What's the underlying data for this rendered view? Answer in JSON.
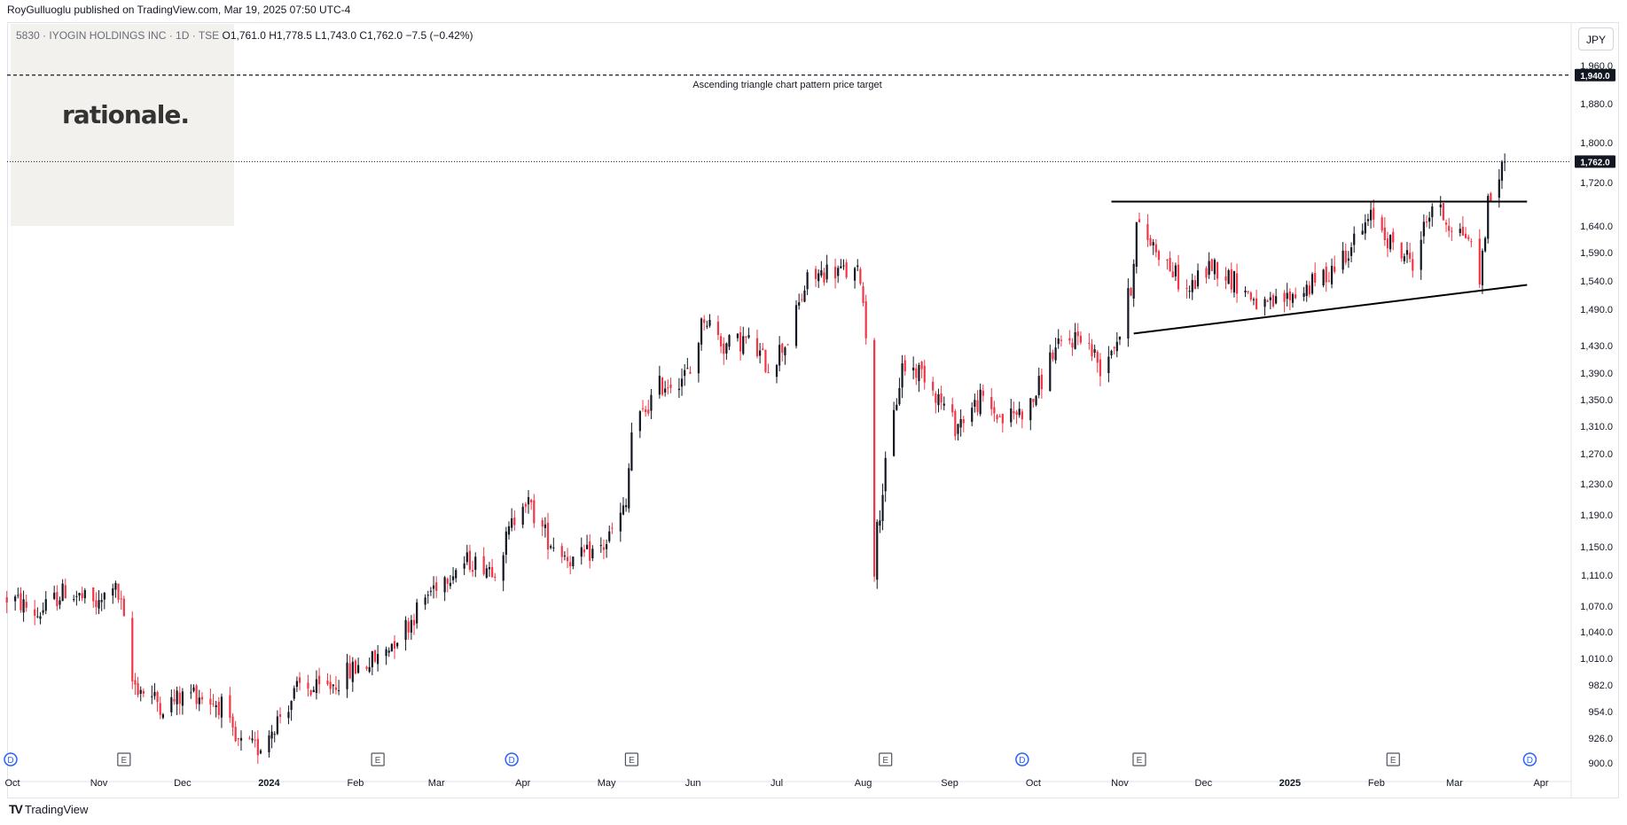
{
  "header": {
    "publisher_line": "RoyGulluoglu published on TradingView.com, Mar 19, 2025 07:50 UTC-4"
  },
  "legend": {
    "symbol": "5830 · IYOGIN HOLDINGS INC · 1D · TSE",
    "open_label": "O",
    "open": "1,761.0",
    "high_label": "H",
    "high": "1,778.5",
    "low_label": "L",
    "low": "1,743.0",
    "close_label": "C",
    "close": "1,762.0",
    "change": "−7.5 (−0.42%)"
  },
  "logo": {
    "text": "rationale."
  },
  "currency_button": "JPY",
  "footer": {
    "brand": "TradingView",
    "brand_mark_icon": "tradingview-logo-icon"
  },
  "colors": {
    "up": "#131722",
    "down": "#f23645",
    "event_dividend": "#2962ff",
    "event_earnings": "#50535e",
    "price_badge": "#131722"
  },
  "chart_data": {
    "type": "candlestick",
    "title": "",
    "xlabel": "",
    "ylabel": "",
    "y_axis": {
      "ticks": [
        900,
        926,
        954,
        982,
        1010,
        1040,
        1070,
        1110,
        1150,
        1190,
        1230,
        1270,
        1310,
        1350,
        1390,
        1430,
        1490,
        1540,
        1590,
        1640,
        1720,
        1800,
        1880,
        1960
      ],
      "tick_labels": [
        "900.0",
        "926.0",
        "954.0",
        "982.0",
        "1,010.0",
        "1,040.0",
        "1,070.0",
        "1,110.0",
        "1,150.0",
        "1,190.0",
        "1,230.0",
        "1,270.0",
        "1,310.0",
        "1,350.0",
        "1,390.0",
        "1,430.0",
        "1,490.0",
        "1,540.0",
        "1,590.0",
        "1,640.0",
        "1,720.0",
        "1,800.0",
        "1,880.0",
        "1,960.0"
      ],
      "scale": "log"
    },
    "x_axis": {
      "labels": [
        "Oct",
        "Nov",
        "Dec",
        "2024",
        "Feb",
        "Mar",
        "Apr",
        "May",
        "Jun",
        "Jul",
        "Aug",
        "Sep",
        "Oct",
        "Nov",
        "Dec",
        "2025",
        "Feb",
        "Mar",
        "Apr"
      ],
      "bold_labels": [
        "2024",
        "2025"
      ],
      "label_dates": [
        "2023-10-01",
        "2023-11-01",
        "2023-12-01",
        "2024-01-01",
        "2024-02-01",
        "2024-03-01",
        "2024-04-01",
        "2024-05-01",
        "2024-06-01",
        "2024-07-01",
        "2024-08-01",
        "2024-09-01",
        "2024-10-01",
        "2024-11-01",
        "2024-12-01",
        "2025-01-01",
        "2025-02-01",
        "2025-03-01",
        "2025-04-01"
      ],
      "range": [
        "2023-10-01",
        "2025-04-01"
      ]
    },
    "price_line": {
      "value": 1762.0,
      "label": "1,762.0",
      "style": "dotted"
    },
    "target_line": {
      "value": 1940.0,
      "label": "1,940.0",
      "style": "dashed",
      "annotation": "Ascending triangle chart pattern price target"
    },
    "trendlines": [
      {
        "name": "resistance",
        "from": [
          "2024-10-29",
          1685
        ],
        "to": [
          "2025-03-27",
          1685
        ]
      },
      {
        "name": "support",
        "from": [
          "2024-11-06",
          1450
        ],
        "to": [
          "2025-03-27",
          1533
        ]
      }
    ],
    "events": [
      {
        "kind": "D",
        "date": "2023-09-28"
      },
      {
        "kind": "E",
        "date": "2023-11-10"
      },
      {
        "kind": "E",
        "date": "2024-02-09"
      },
      {
        "kind": "D",
        "date": "2024-03-28"
      },
      {
        "kind": "E",
        "date": "2024-05-10"
      },
      {
        "kind": "E",
        "date": "2024-08-09"
      },
      {
        "kind": "D",
        "date": "2024-09-27"
      },
      {
        "kind": "E",
        "date": "2024-11-08"
      },
      {
        "kind": "E",
        "date": "2025-02-07"
      },
      {
        "kind": "D",
        "date": "2025-03-28"
      }
    ],
    "close_path_anchors": [
      [
        "2023-10-01",
        1080
      ],
      [
        "2023-10-10",
        1060
      ],
      [
        "2023-10-20",
        1090
      ],
      [
        "2023-11-01",
        1070
      ],
      [
        "2023-11-06",
        1100
      ],
      [
        "2023-11-09",
        1070
      ],
      [
        "2023-11-13",
        985
      ],
      [
        "2023-11-24",
        960
      ],
      [
        "2023-12-05",
        975
      ],
      [
        "2023-12-15",
        960
      ],
      [
        "2023-12-20",
        920
      ],
      [
        "2023-12-28",
        915
      ],
      [
        "2024-01-05",
        950
      ],
      [
        "2024-01-12",
        980
      ],
      [
        "2024-01-20",
        975
      ],
      [
        "2024-02-01",
        1000
      ],
      [
        "2024-02-09",
        1010
      ],
      [
        "2024-02-20",
        1050
      ],
      [
        "2024-03-01",
        1100
      ],
      [
        "2024-03-12",
        1130
      ],
      [
        "2024-03-22",
        1120
      ],
      [
        "2024-04-01",
        1215
      ],
      [
        "2024-04-10",
        1160
      ],
      [
        "2024-04-19",
        1130
      ],
      [
        "2024-04-30",
        1150
      ],
      [
        "2024-05-08",
        1200
      ],
      [
        "2024-05-10",
        1300
      ],
      [
        "2024-05-20",
        1370
      ],
      [
        "2024-05-31",
        1390
      ],
      [
        "2024-06-05",
        1480
      ],
      [
        "2024-06-12",
        1430
      ],
      [
        "2024-06-20",
        1440
      ],
      [
        "2024-06-28",
        1400
      ],
      [
        "2024-07-05",
        1440
      ],
      [
        "2024-07-12",
        1540
      ],
      [
        "2024-07-20",
        1560
      ],
      [
        "2024-07-31",
        1550
      ],
      [
        "2024-08-02",
        1450
      ],
      [
        "2024-08-05",
        1120
      ],
      [
        "2024-08-06",
        1170
      ],
      [
        "2024-08-09",
        1250
      ],
      [
        "2024-08-15",
        1400
      ],
      [
        "2024-08-23",
        1390
      ],
      [
        "2024-09-03",
        1310
      ],
      [
        "2024-09-12",
        1350
      ],
      [
        "2024-09-20",
        1320
      ],
      [
        "2024-09-30",
        1340
      ],
      [
        "2024-10-08",
        1420
      ],
      [
        "2024-10-18",
        1450
      ],
      [
        "2024-10-25",
        1400
      ],
      [
        "2024-11-01",
        1450
      ],
      [
        "2024-11-05",
        1530
      ],
      [
        "2024-11-07",
        1640
      ],
      [
        "2024-11-14",
        1600
      ],
      [
        "2024-11-25",
        1520
      ],
      [
        "2024-12-04",
        1570
      ],
      [
        "2024-12-12",
        1540
      ],
      [
        "2024-12-23",
        1490
      ],
      [
        "2025-01-06",
        1525
      ],
      [
        "2025-01-14",
        1550
      ],
      [
        "2025-01-24",
        1610
      ],
      [
        "2025-01-31",
        1660
      ],
      [
        "2025-02-07",
        1600
      ],
      [
        "2025-02-14",
        1575
      ],
      [
        "2025-02-21",
        1680
      ],
      [
        "2025-02-28",
        1640
      ],
      [
        "2025-03-06",
        1620
      ],
      [
        "2025-03-10",
        1540
      ],
      [
        "2025-03-13",
        1680
      ],
      [
        "2025-03-19",
        1762
      ]
    ]
  }
}
